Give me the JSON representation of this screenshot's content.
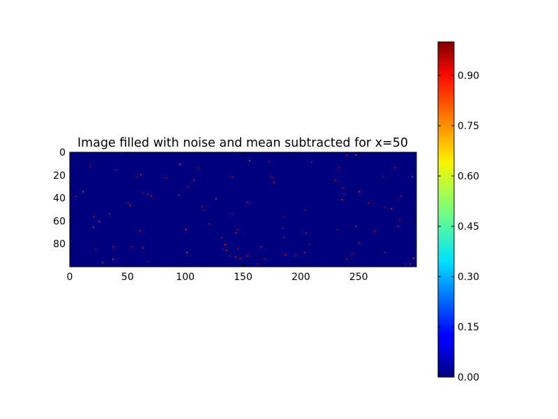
{
  "chart_data": {
    "type": "heatmap",
    "title": "Image filled with noise and mean subtracted for x=50",
    "xlabel": "",
    "ylabel": "",
    "x_ticks": [
      0,
      50,
      100,
      150,
      200,
      250
    ],
    "y_ticks": [
      0,
      20,
      40,
      60,
      80
    ],
    "xlim": [
      0,
      300
    ],
    "ylim": [
      100,
      0
    ],
    "image_size": {
      "cols": 300,
      "rows": 100
    },
    "background_value": 0.0,
    "colormap": "jet",
    "colorbar": {
      "range": [
        0.0,
        1.0
      ],
      "ticks": [
        0.0,
        0.15,
        0.3,
        0.45,
        0.6,
        0.75,
        0.9
      ],
      "tick_labels": [
        "0.00",
        "0.15",
        "0.30",
        "0.45",
        "0.60",
        "0.75",
        "0.90"
      ]
    },
    "grid": false,
    "nonzero_pixels": [
      {
        "x": 17,
        "y": 12,
        "v": 0.95
      },
      {
        "x": 40,
        "y": 15,
        "v": 0.9
      },
      {
        "x": 58,
        "y": 21,
        "v": 0.92
      },
      {
        "x": 61,
        "y": 19,
        "v": 0.85
      },
      {
        "x": 83,
        "y": 22,
        "v": 0.93
      },
      {
        "x": 95,
        "y": 10,
        "v": 0.8
      },
      {
        "x": 111,
        "y": 13,
        "v": 0.97
      },
      {
        "x": 107,
        "y": 24,
        "v": 0.88
      },
      {
        "x": 102,
        "y": 30,
        "v": 0.91
      },
      {
        "x": 94,
        "y": 37,
        "v": 0.86
      },
      {
        "x": 5,
        "y": 38,
        "v": 0.9
      },
      {
        "x": 11,
        "y": 34,
        "v": 0.78
      },
      {
        "x": 63,
        "y": 35,
        "v": 0.95
      },
      {
        "x": 67,
        "y": 36,
        "v": 0.92
      },
      {
        "x": 70,
        "y": 38,
        "v": 0.87
      },
      {
        "x": 50,
        "y": 44,
        "v": 0.9
      },
      {
        "x": 52,
        "y": 46,
        "v": 0.84
      },
      {
        "x": 114,
        "y": 47,
        "v": 0.93
      },
      {
        "x": 116,
        "y": 50,
        "v": 0.96
      },
      {
        "x": 126,
        "y": 40,
        "v": 0.82
      },
      {
        "x": 140,
        "y": 21,
        "v": 0.91
      },
      {
        "x": 155,
        "y": 7,
        "v": 0.8
      },
      {
        "x": 172,
        "y": 8,
        "v": 0.94
      },
      {
        "x": 174,
        "y": 21,
        "v": 0.98
      },
      {
        "x": 175,
        "y": 22,
        "v": 0.97
      },
      {
        "x": 176,
        "y": 26,
        "v": 0.86
      },
      {
        "x": 209,
        "y": 8,
        "v": 0.9
      },
      {
        "x": 233,
        "y": 13,
        "v": 0.95
      },
      {
        "x": 239,
        "y": 2,
        "v": 0.88
      },
      {
        "x": 247,
        "y": 2,
        "v": 0.84
      },
      {
        "x": 281,
        "y": 13,
        "v": 0.93
      },
      {
        "x": 229,
        "y": 24,
        "v": 0.9
      },
      {
        "x": 236,
        "y": 31,
        "v": 0.87
      },
      {
        "x": 237,
        "y": 36,
        "v": 0.92
      },
      {
        "x": 250,
        "y": 34,
        "v": 0.8
      },
      {
        "x": 271,
        "y": 21,
        "v": 0.95
      },
      {
        "x": 296,
        "y": 21,
        "v": 0.83
      },
      {
        "x": 286,
        "y": 38,
        "v": 0.9
      },
      {
        "x": 235,
        "y": 41,
        "v": 0.86
      },
      {
        "x": 258,
        "y": 44,
        "v": 0.91
      },
      {
        "x": 272,
        "y": 48,
        "v": 0.96
      },
      {
        "x": 278,
        "y": 49,
        "v": 0.82
      },
      {
        "x": 203,
        "y": 50,
        "v": 0.93
      },
      {
        "x": 153,
        "y": 43,
        "v": 0.88
      },
      {
        "x": 34,
        "y": 53,
        "v": 0.87
      },
      {
        "x": 20,
        "y": 56,
        "v": 0.9
      },
      {
        "x": 25,
        "y": 60,
        "v": 0.85
      },
      {
        "x": 20,
        "y": 65,
        "v": 0.82
      },
      {
        "x": 60,
        "y": 68,
        "v": 0.91
      },
      {
        "x": 120,
        "y": 62,
        "v": 0.89
      },
      {
        "x": 140,
        "y": 53,
        "v": 0.94
      },
      {
        "x": 100,
        "y": 67,
        "v": 0.8
      },
      {
        "x": 145,
        "y": 67,
        "v": 0.92
      },
      {
        "x": 143,
        "y": 70,
        "v": 0.86
      },
      {
        "x": 184,
        "y": 66,
        "v": 0.9
      },
      {
        "x": 185,
        "y": 56,
        "v": 0.95
      },
      {
        "x": 204,
        "y": 70,
        "v": 0.88
      },
      {
        "x": 231,
        "y": 67,
        "v": 0.93
      },
      {
        "x": 247,
        "y": 64,
        "v": 0.84
      },
      {
        "x": 263,
        "y": 68,
        "v": 0.9
      },
      {
        "x": 285,
        "y": 59,
        "v": 0.91
      },
      {
        "x": 284,
        "y": 64,
        "v": 0.87
      },
      {
        "x": 131,
        "y": 74,
        "v": 0.92
      },
      {
        "x": 134,
        "y": 80,
        "v": 0.85
      },
      {
        "x": 185,
        "y": 74,
        "v": 0.89
      },
      {
        "x": 207,
        "y": 80,
        "v": 0.94
      },
      {
        "x": 250,
        "y": 79,
        "v": 0.9
      },
      {
        "x": 22,
        "y": 84,
        "v": 0.96
      },
      {
        "x": 37,
        "y": 82,
        "v": 0.88
      },
      {
        "x": 53,
        "y": 82,
        "v": 0.92
      },
      {
        "x": 63,
        "y": 83,
        "v": 0.87
      },
      {
        "x": 101,
        "y": 87,
        "v": 0.8
      },
      {
        "x": 132,
        "y": 84,
        "v": 0.95
      },
      {
        "x": 135,
        "y": 85,
        "v": 0.9
      },
      {
        "x": 145,
        "y": 84,
        "v": 0.93
      },
      {
        "x": 165,
        "y": 82,
        "v": 0.89
      },
      {
        "x": 203,
        "y": 87,
        "v": 0.86
      },
      {
        "x": 244,
        "y": 88,
        "v": 0.92
      },
      {
        "x": 272,
        "y": 87,
        "v": 0.9
      },
      {
        "x": 138,
        "y": 90,
        "v": 0.94
      },
      {
        "x": 143,
        "y": 91,
        "v": 0.85
      },
      {
        "x": 147,
        "y": 92,
        "v": 0.91
      },
      {
        "x": 153,
        "y": 90,
        "v": 0.88
      },
      {
        "x": 168,
        "y": 93,
        "v": 0.9
      },
      {
        "x": 186,
        "y": 89,
        "v": 0.87
      },
      {
        "x": 195,
        "y": 90,
        "v": 0.93
      },
      {
        "x": 239,
        "y": 93,
        "v": 0.9
      },
      {
        "x": 28,
        "y": 96,
        "v": 0.86
      },
      {
        "x": 67,
        "y": 95,
        "v": 0.95
      },
      {
        "x": 37,
        "y": 93,
        "v": 0.8
      },
      {
        "x": 290,
        "y": 97,
        "v": 0.92
      },
      {
        "x": 294,
        "y": 97,
        "v": 0.88
      },
      {
        "x": 297,
        "y": 92,
        "v": 0.84
      },
      {
        "x": 162,
        "y": 97,
        "v": 0.9
      }
    ]
  }
}
